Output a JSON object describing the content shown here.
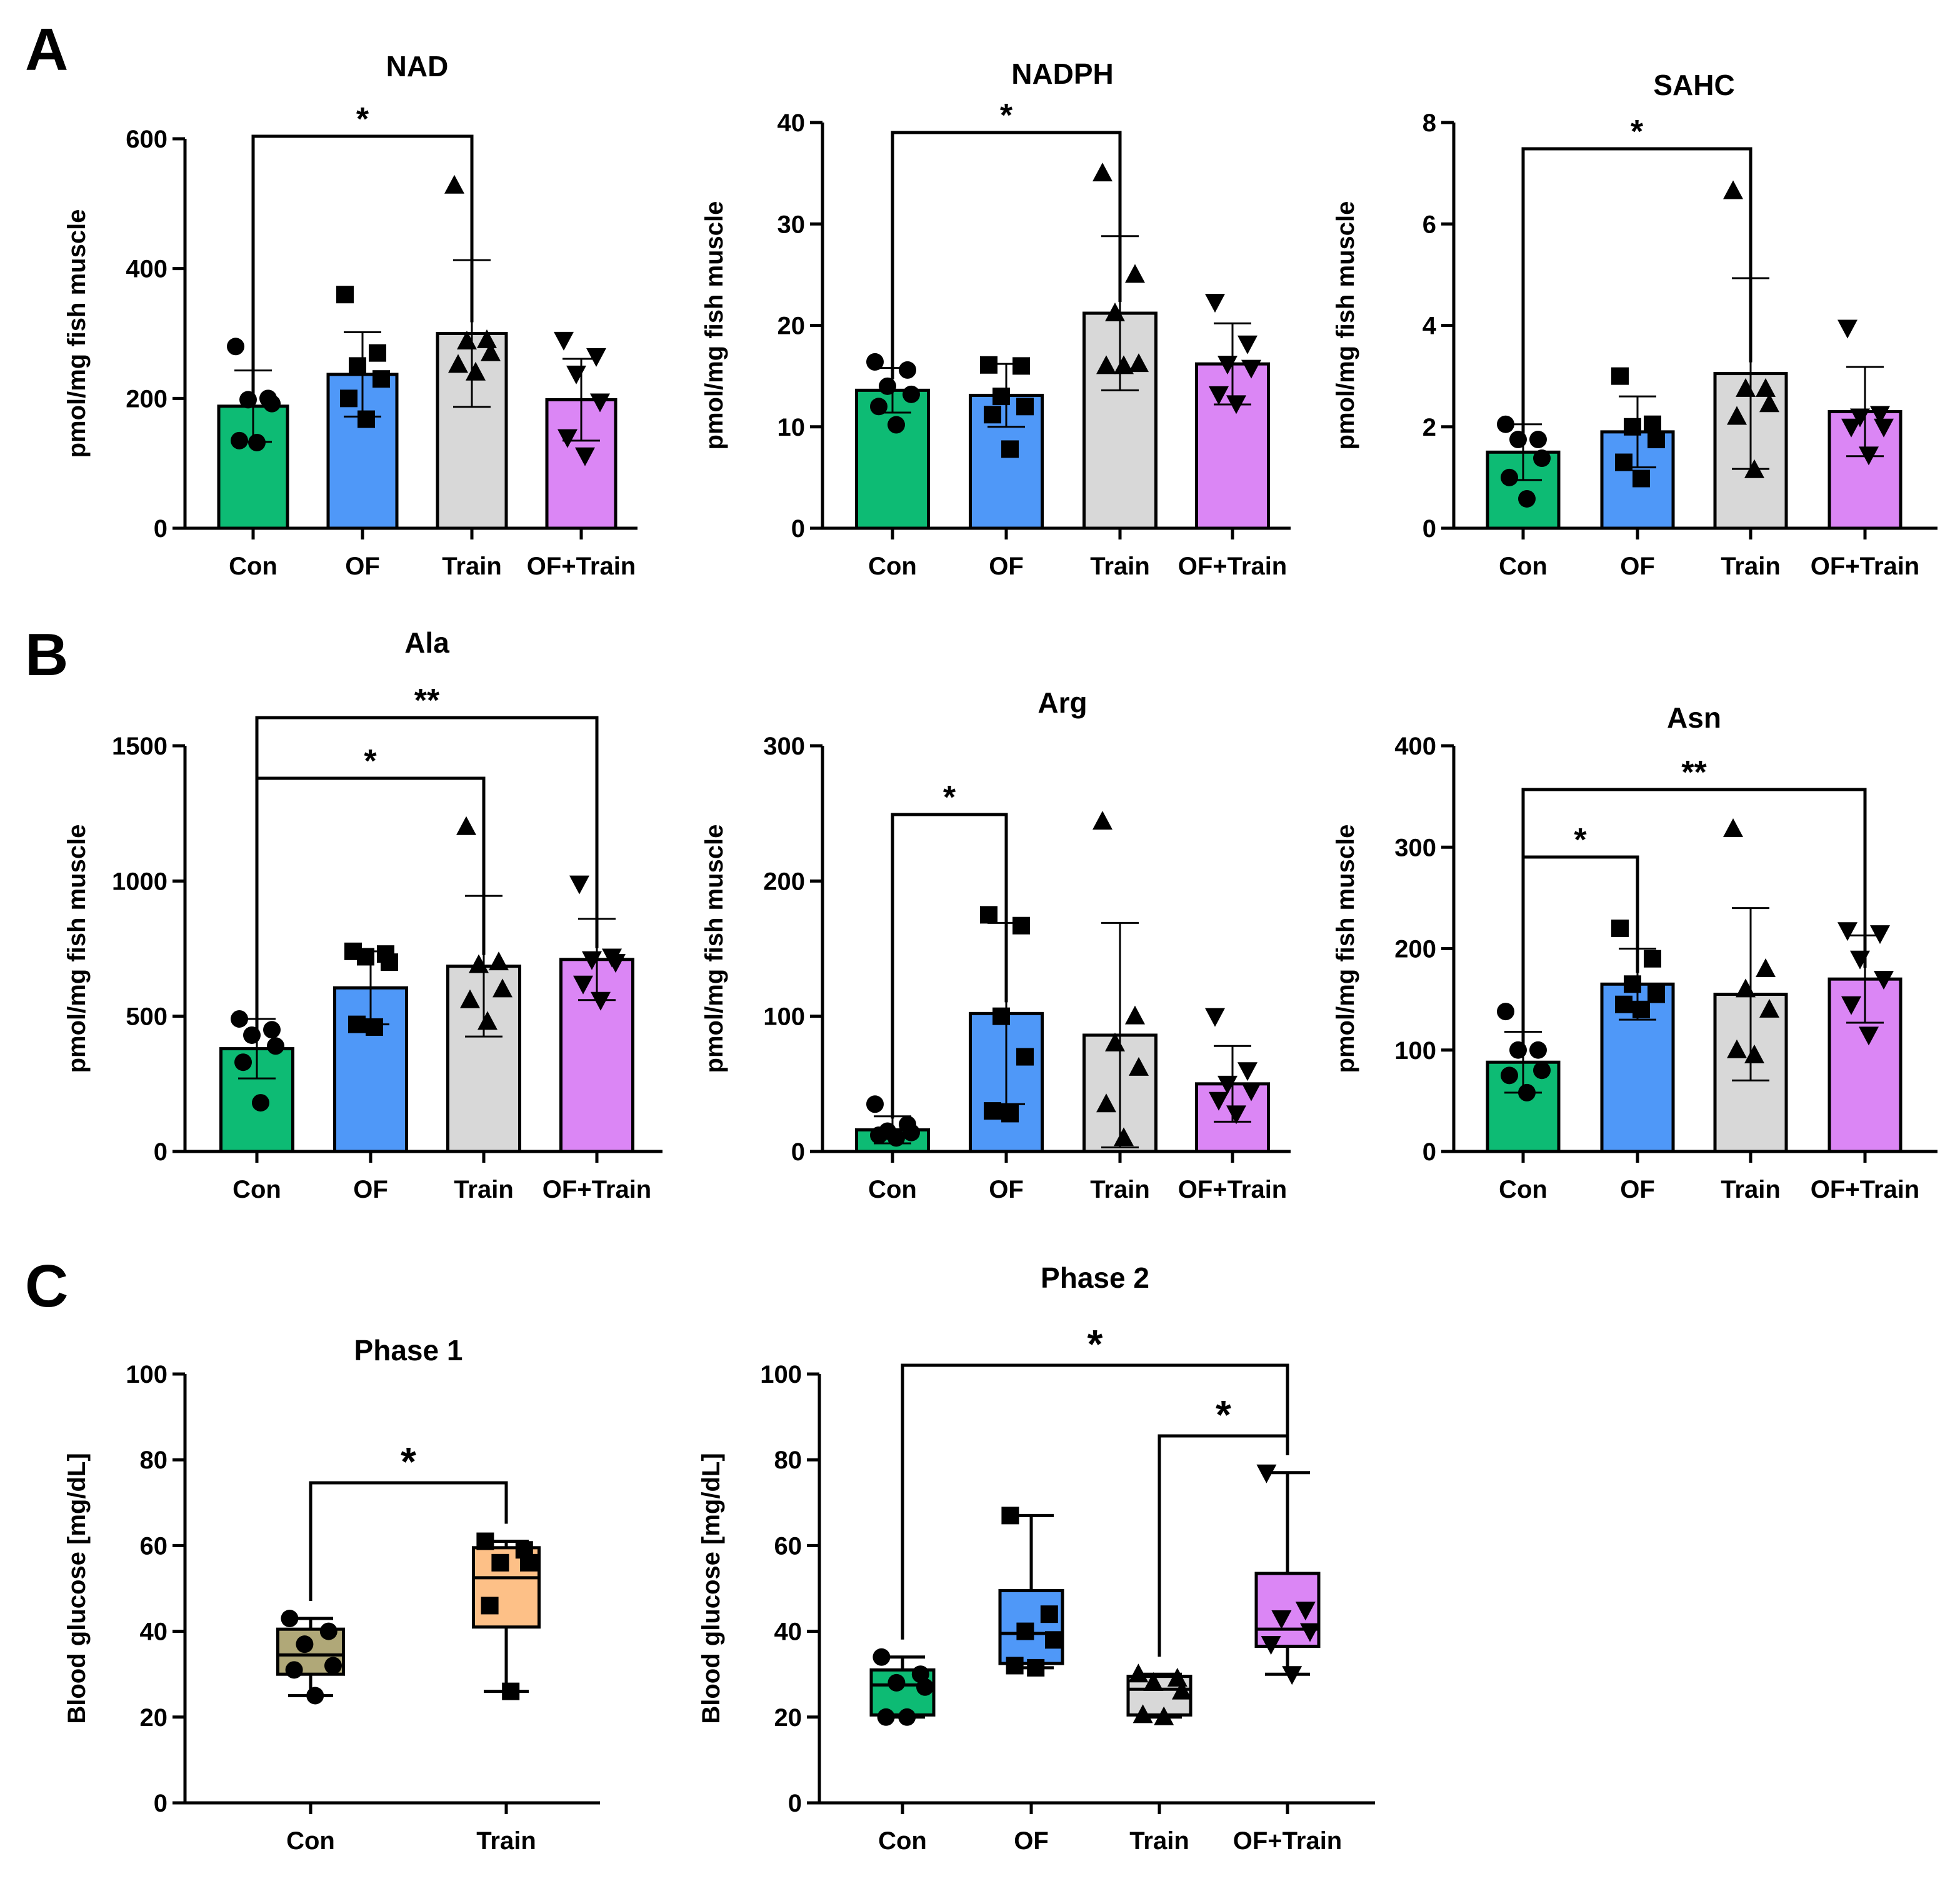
{
  "panel_labels": [
    "A",
    "B",
    "C"
  ],
  "colors": {
    "Con": "#0dbb74",
    "OF": "#4f98f8",
    "Train": "#d8d8d8",
    "OF+Train": "#db86f5",
    "Con_phase1": "#b0a878",
    "Train_phase1": "#fdc087"
  },
  "chart_data": [
    {
      "id": "A1",
      "type": "bar",
      "title": "NAD",
      "ylabel": "pmol/mg fish muscle",
      "categories": [
        "Con",
        "OF",
        "Train",
        "OF+Train"
      ],
      "ylim": [
        0,
        600
      ],
      "yticks": [
        0,
        200,
        400,
        600
      ],
      "values": [
        188,
        237,
        300,
        198
      ],
      "errors": [
        55,
        65,
        113,
        63
      ],
      "points": [
        [
          280,
          200,
          198,
          192,
          135,
          132
        ],
        [
          360,
          270,
          250,
          230,
          200,
          168
        ],
        [
          528,
          290,
          288,
          270,
          252,
          240
        ],
        [
          290,
          265,
          238,
          195,
          140,
          112
        ]
      ],
      "markers": [
        "circle",
        "square",
        "triangle",
        "triangle-down"
      ],
      "significance": [
        {
          "from": 0,
          "to": 2,
          "label": "*",
          "level": 1
        }
      ]
    },
    {
      "id": "A2",
      "type": "bar",
      "title": "NADPH",
      "ylabel": "pmol/mg fish muscle",
      "categories": [
        "Con",
        "OF",
        "Train",
        "OF+Train"
      ],
      "ylim": [
        0,
        40
      ],
      "yticks": [
        0,
        10,
        20,
        30,
        40
      ],
      "values": [
        13.6,
        13.1,
        21.2,
        16.2
      ],
      "errors": [
        2.2,
        3.1,
        7.6,
        4.0
      ],
      "points": [
        [
          16.4,
          15.6,
          14.0,
          13.2,
          12.0,
          10.2
        ],
        [
          16.1,
          16.0,
          13.0,
          12.0,
          11.2,
          7.8
        ],
        [
          35.0,
          25.0,
          21.2,
          16.2,
          16.0,
          16.0
        ],
        [
          22.3,
          18.2,
          16.2,
          15.8,
          13.2,
          12.3
        ]
      ],
      "markers": [
        "circle",
        "square",
        "triangle",
        "triangle-down"
      ],
      "significance": [
        {
          "from": 0,
          "to": 2,
          "label": "*",
          "level": 1
        }
      ]
    },
    {
      "id": "A3",
      "type": "bar",
      "title": "SAHC",
      "ylabel": "pmol/mg fish muscle",
      "categories": [
        "Con",
        "OF",
        "Train",
        "OF+Train"
      ],
      "ylim": [
        0,
        8
      ],
      "yticks": [
        0,
        2,
        4,
        6,
        8
      ],
      "values": [
        1.5,
        1.9,
        3.05,
        2.3
      ],
      "errors": [
        0.55,
        0.7,
        1.88,
        0.88
      ],
      "points": [
        [
          2.05,
          1.75,
          1.75,
          1.38,
          1.0,
          0.58
        ],
        [
          3.0,
          2.05,
          2.0,
          1.75,
          1.3,
          0.98
        ],
        [
          6.65,
          2.75,
          2.75,
          2.45,
          2.2,
          1.15
        ],
        [
          3.95,
          2.25,
          2.2,
          2.0,
          2.0,
          1.45
        ]
      ],
      "markers": [
        "circle",
        "square",
        "triangle",
        "triangle-down"
      ],
      "significance": [
        {
          "from": 0,
          "to": 2,
          "label": "*",
          "level": 1
        }
      ]
    },
    {
      "id": "B1",
      "type": "bar",
      "title": "Ala",
      "ylabel": "pmol/mg fish muscle",
      "categories": [
        "Con",
        "OF",
        "Train",
        "OF+Train"
      ],
      "ylim": [
        0,
        1500
      ],
      "yticks": [
        0,
        500,
        1000,
        1500
      ],
      "values": [
        380,
        605,
        685,
        710
      ],
      "errors": [
        110,
        135,
        260,
        150
      ],
      "points": [
        [
          490,
          450,
          430,
          390,
          330,
          180
        ],
        [
          740,
          730,
          720,
          700,
          470,
          460
        ],
        [
          1200,
          700,
          690,
          600,
          560,
          480
        ],
        [
          990,
          720,
          710,
          700,
          620,
          560
        ]
      ],
      "markers": [
        "circle",
        "square",
        "triangle",
        "triangle-down"
      ],
      "significance": [
        {
          "from": 0,
          "to": 2,
          "label": "*",
          "level": 1
        },
        {
          "from": 0,
          "to": 3,
          "label": "**",
          "level": 2
        }
      ]
    },
    {
      "id": "B2",
      "type": "bar",
      "title": "Arg",
      "ylabel": "pmol/mg fish muscle",
      "categories": [
        "Con",
        "OF",
        "Train",
        "OF+Train"
      ],
      "ylim": [
        0,
        300
      ],
      "yticks": [
        0,
        100,
        200,
        300
      ],
      "values": [
        16,
        102,
        86,
        50
      ],
      "errors": [
        10,
        67,
        83,
        28
      ],
      "points": [
        [
          35,
          20,
          15,
          14,
          12,
          10
        ],
        [
          175,
          167,
          100,
          70,
          30,
          28
        ],
        [
          244,
          100,
          80,
          62,
          35,
          10
        ],
        [
          100,
          60,
          50,
          45,
          38,
          28
        ]
      ],
      "markers": [
        "circle",
        "square",
        "triangle",
        "triangle-down"
      ],
      "significance": [
        {
          "from": 0,
          "to": 1,
          "label": "*",
          "level": 1
        }
      ]
    },
    {
      "id": "B3",
      "type": "bar",
      "title": "Asn",
      "ylabel": "pmol/mg fish muscle",
      "categories": [
        "Con",
        "OF",
        "Train",
        "OF+Train"
      ],
      "ylim": [
        0,
        400
      ],
      "yticks": [
        0,
        100,
        200,
        300,
        400
      ],
      "values": [
        88,
        165,
        155,
        170
      ],
      "errors": [
        30,
        35,
        85,
        43
      ],
      "points": [
        [
          138,
          100,
          100,
          80,
          75,
          58
        ],
        [
          220,
          190,
          165,
          155,
          145,
          140
        ],
        [
          318,
          180,
          160,
          140,
          100,
          95
        ],
        [
          218,
          215,
          190,
          170,
          145,
          115
        ]
      ],
      "markers": [
        "circle",
        "square",
        "triangle",
        "triangle-down"
      ],
      "significance": [
        {
          "from": 0,
          "to": 1,
          "label": "*",
          "level": 1
        },
        {
          "from": 0,
          "to": 3,
          "label": "**",
          "level": 2
        }
      ]
    },
    {
      "id": "C1",
      "type": "box",
      "title": "Phase 1",
      "ylabel": "Blood glucose [mg/dL]",
      "categories": [
        "Con",
        "Train"
      ],
      "ylim": [
        0,
        100
      ],
      "yticks": [
        0,
        20,
        40,
        60,
        80,
        100
      ],
      "boxes": [
        {
          "min": 25,
          "q1": 30,
          "median": 34.5,
          "q3": 40.5,
          "max": 43
        },
        {
          "min": 26,
          "q1": 41,
          "median": 52.5,
          "q3": 59.5,
          "max": 61
        }
      ],
      "points": [
        [
          43,
          40,
          37,
          32,
          31,
          25
        ],
        [
          61,
          59,
          56,
          56,
          46,
          26
        ]
      ],
      "markers": [
        "circle",
        "square"
      ],
      "significance": [
        {
          "from": 0,
          "to": 1,
          "label": "*",
          "level": 1
        }
      ]
    },
    {
      "id": "C2",
      "type": "box",
      "title": "Phase 2",
      "ylabel": "Blood glucose [mg/dL]",
      "categories": [
        "Con",
        "OF",
        "Train",
        "OF+Train"
      ],
      "ylim": [
        0,
        100
      ],
      "yticks": [
        0,
        20,
        40,
        60,
        80,
        100
      ],
      "boxes": [
        {
          "min": 20,
          "q1": 20.5,
          "median": 27.5,
          "q3": 31,
          "max": 34
        },
        {
          "min": 31.5,
          "q1": 32.5,
          "median": 39.5,
          "q3": 49.5,
          "max": 67
        },
        {
          "min": 20,
          "q1": 20.5,
          "median": 26.5,
          "q3": 29.5,
          "max": 30
        },
        {
          "min": 30,
          "q1": 36.5,
          "median": 40.5,
          "q3": 53.5,
          "max": 77
        }
      ],
      "points": [
        [
          34,
          30,
          28,
          27,
          20,
          20
        ],
        [
          67,
          44,
          40,
          38,
          32,
          31.5
        ],
        [
          30,
          29,
          28,
          26,
          20.5,
          20
        ],
        [
          77,
          45,
          43,
          40,
          37,
          30
        ]
      ],
      "markers": [
        "circle",
        "square",
        "triangle",
        "triangle-down"
      ],
      "significance": [
        {
          "from": 2,
          "to": 3,
          "label": "*",
          "level": 1
        },
        {
          "from": 0,
          "to": 3,
          "label": "*",
          "level": 2
        }
      ]
    }
  ]
}
